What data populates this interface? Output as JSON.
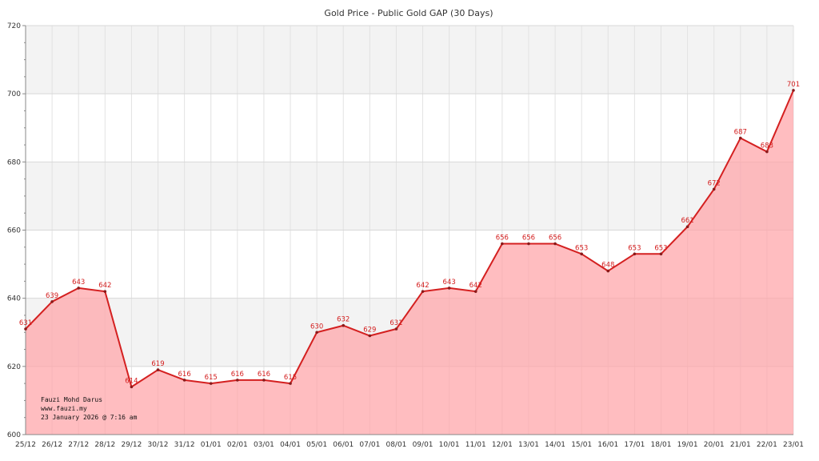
{
  "colors": {
    "line": "#d42020",
    "fill": "#ffa3a8",
    "band": "#f3f3f3",
    "grid": "#e2e2e2",
    "label": "#d42020"
  },
  "credit": {
    "line1": "Fauzi Mohd Darus",
    "line2": "www.fauzi.my",
    "line3": "23 January 2026 @ 7:16 am"
  },
  "chart_data": {
    "type": "area",
    "title": "Gold Price - Public Gold GAP (30 Days)",
    "xlabel": "",
    "ylabel": "",
    "ylim": [
      600,
      720
    ],
    "yticks": [
      600,
      620,
      640,
      660,
      680,
      700,
      720
    ],
    "grid": true,
    "categories": [
      "25/12",
      "26/12",
      "27/12",
      "28/12",
      "29/12",
      "30/12",
      "31/12",
      "01/01",
      "02/01",
      "03/01",
      "04/01",
      "05/01",
      "06/01",
      "07/01",
      "08/01",
      "09/01",
      "10/01",
      "11/01",
      "12/01",
      "13/01",
      "14/01",
      "15/01",
      "16/01",
      "17/01",
      "18/01",
      "19/01",
      "20/01",
      "21/01",
      "22/01",
      "23/01"
    ],
    "series": [
      {
        "values": [
          631,
          639,
          643,
          642,
          614,
          619,
          616,
          615,
          616,
          616,
          615,
          630,
          632,
          629,
          631,
          642,
          643,
          642,
          656,
          656,
          656,
          653,
          648,
          653,
          653,
          661,
          672,
          687,
          683,
          701
        ]
      }
    ]
  }
}
